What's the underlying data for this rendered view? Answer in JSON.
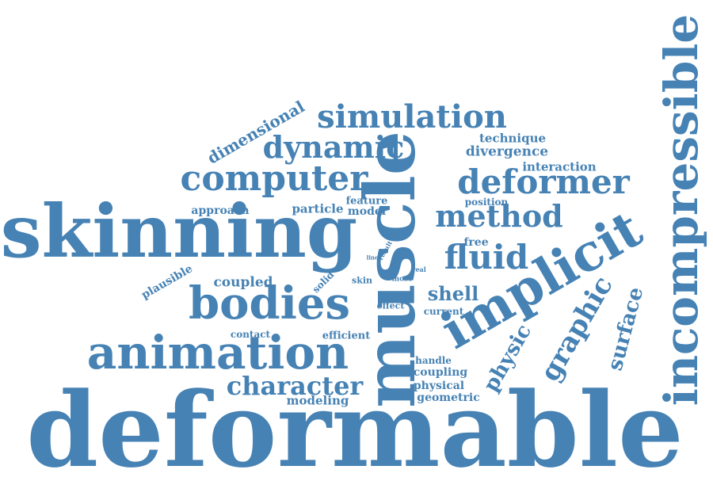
{
  "colors": {
    "word": "#4682b4",
    "background": "#ffffff"
  },
  "words": {
    "deformable": "deformable",
    "skinning": "skinning",
    "muscle": "muscle",
    "incompressible": "incompressible",
    "implicit": "implicit",
    "animation": "animation",
    "bodies": "bodies",
    "simulation": "simulation",
    "computer": "computer",
    "dynamic": "dynamic",
    "deformer": "deformer",
    "method": "method",
    "fluid": "fluid",
    "character": "character",
    "graphic": "graphic",
    "surface": "surface",
    "physic": "physic",
    "shell": "shell",
    "dimensional": "dimensional",
    "technique": "technique",
    "divergence": "divergence",
    "interaction": "interaction",
    "approach": "approach",
    "particle": "particle",
    "model": "model",
    "feature": "feature",
    "position": "position",
    "free": "free",
    "coupled": "coupled",
    "plausible": "plausible",
    "solid": "solid",
    "skin": "skin",
    "most": "most",
    "real": "real",
    "line": "line",
    "result": "result",
    "fast": "fast",
    "effect": "effect",
    "current": "current",
    "contact": "contact",
    "efficient": "efficient",
    "handle": "handle",
    "coupling": "coupling",
    "physical": "physical",
    "geometric": "geometric",
    "modeling": "modeling"
  }
}
